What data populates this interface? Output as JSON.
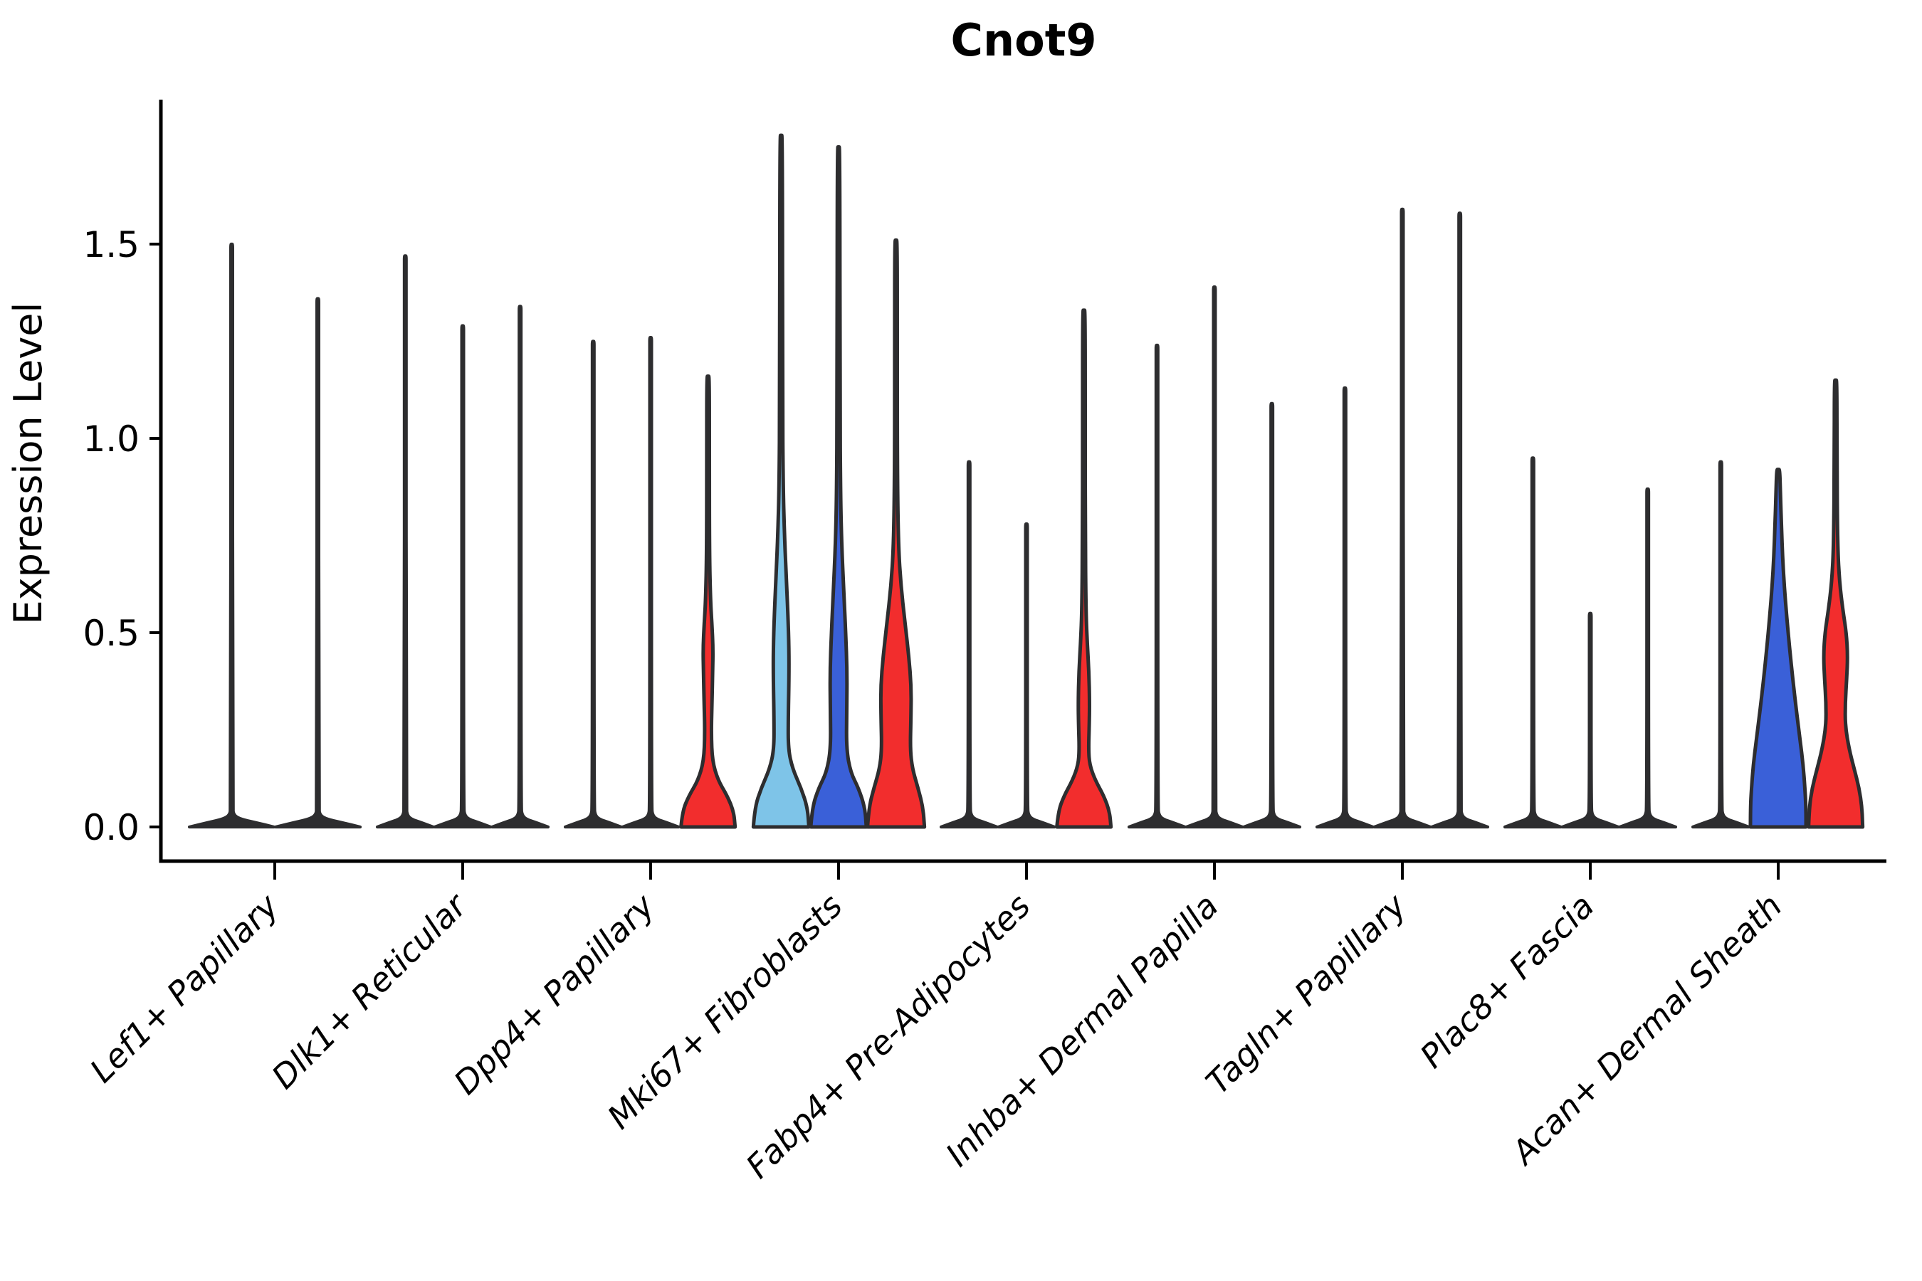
{
  "chart_data": {
    "type": "violin",
    "title": "Cnot9",
    "ylabel": "Expression Level",
    "yticks": [
      0.0,
      0.5,
      1.0,
      1.5
    ],
    "ytick_labels": [
      "0.0",
      "0.5",
      "1.0",
      "1.5"
    ],
    "ylim": [
      -0.09,
      1.87
    ],
    "grid": false,
    "legend": null,
    "palette": {
      "light_blue": "#7EC4E8",
      "blue": "#3A60D8",
      "red": "#F22D2D",
      "outline": "#2D2D2F",
      "axis": "#000000"
    },
    "groups": [
      {
        "label": "Lef1+ Papillary",
        "violins": [
          {
            "shape": "spike",
            "max": 1.5
          },
          {
            "shape": "spike",
            "max": 1.36
          }
        ]
      },
      {
        "label": "Dlk1+ Reticular",
        "violins": [
          {
            "shape": "spike",
            "max": 1.47
          },
          {
            "shape": "spike",
            "max": 1.29
          },
          {
            "shape": "spike",
            "max": 1.34
          }
        ]
      },
      {
        "label": "Dpp4+ Papillary",
        "violins": [
          {
            "shape": "spike",
            "max": 1.25
          },
          {
            "shape": "spike",
            "max": 1.26
          },
          {
            "shape": "violin",
            "color_key": "red",
            "max": 1.16,
            "profile": [
              [
                0,
                38
              ],
              [
                0.04,
                36
              ],
              [
                0.08,
                27
              ],
              [
                0.12,
                14
              ],
              [
                0.17,
                6
              ],
              [
                0.24,
                4.5
              ],
              [
                0.32,
                5.5
              ],
              [
                0.4,
                6.5
              ],
              [
                0.46,
                7
              ],
              [
                0.52,
                5.5
              ],
              [
                0.58,
                3.5
              ],
              [
                0.7,
                2
              ],
              [
                0.95,
                1.8
              ],
              [
                1.16,
                1.8
              ]
            ]
          }
        ]
      },
      {
        "label": "Mki67+ Fibroblasts",
        "violins": [
          {
            "shape": "violin",
            "color_key": "light_blue",
            "max": 1.78,
            "profile": [
              [
                0,
                39
              ],
              [
                0.05,
                37
              ],
              [
                0.1,
                28
              ],
              [
                0.15,
                16
              ],
              [
                0.2,
                10
              ],
              [
                0.28,
                10
              ],
              [
                0.38,
                11
              ],
              [
                0.46,
                11
              ],
              [
                0.55,
                9.5
              ],
              [
                0.65,
                7
              ],
              [
                0.76,
                4.5
              ],
              [
                0.88,
                2.8
              ],
              [
                1.1,
                2
              ],
              [
                1.78,
                1.8
              ]
            ]
          },
          {
            "shape": "violin",
            "color_key": "blue",
            "max": 1.75,
            "profile": [
              [
                0,
                39
              ],
              [
                0.05,
                37
              ],
              [
                0.1,
                28
              ],
              [
                0.14,
                17
              ],
              [
                0.2,
                11
              ],
              [
                0.3,
                11.5
              ],
              [
                0.4,
                12
              ],
              [
                0.5,
                10
              ],
              [
                0.6,
                7.5
              ],
              [
                0.72,
                4.5
              ],
              [
                0.85,
                2.8
              ],
              [
                1.1,
                2
              ],
              [
                1.75,
                1.8
              ]
            ]
          },
          {
            "shape": "violin",
            "color_key": "red",
            "max": 1.51,
            "profile": [
              [
                0,
                40
              ],
              [
                0.05,
                38
              ],
              [
                0.1,
                31
              ],
              [
                0.15,
                23
              ],
              [
                0.2,
                20
              ],
              [
                0.28,
                21
              ],
              [
                0.36,
                21.5
              ],
              [
                0.44,
                18
              ],
              [
                0.52,
                13
              ],
              [
                0.62,
                7
              ],
              [
                0.72,
                3.5
              ],
              [
                0.9,
                2
              ],
              [
                1.2,
                1.8
              ],
              [
                1.51,
                1.8
              ]
            ]
          }
        ]
      },
      {
        "label": "Fabp4+ Pre-Adipocytes",
        "violins": [
          {
            "shape": "spike",
            "max": 0.94
          },
          {
            "shape": "spike",
            "max": 0.78
          },
          {
            "shape": "violin",
            "color_key": "red",
            "max": 1.33,
            "profile": [
              [
                0,
                38
              ],
              [
                0.04,
                36
              ],
              [
                0.08,
                28
              ],
              [
                0.12,
                16
              ],
              [
                0.16,
                8
              ],
              [
                0.2,
                6.5
              ],
              [
                0.26,
                7.5
              ],
              [
                0.32,
                8
              ],
              [
                0.4,
                7
              ],
              [
                0.48,
                4.5
              ],
              [
                0.56,
                2.8
              ],
              [
                0.75,
                2
              ],
              [
                1.0,
                1.8
              ],
              [
                1.33,
                1.8
              ]
            ]
          }
        ]
      },
      {
        "label": "Inhba+ Dermal Papilla",
        "violins": [
          {
            "shape": "spike",
            "max": 1.24
          },
          {
            "shape": "spike",
            "max": 1.39
          },
          {
            "shape": "spike",
            "max": 1.09
          }
        ]
      },
      {
        "label": "Tagln+ Papillary",
        "violins": [
          {
            "shape": "spike",
            "max": 1.13
          },
          {
            "shape": "spike",
            "max": 1.59
          },
          {
            "shape": "spike",
            "max": 1.58
          }
        ]
      },
      {
        "label": "Plac8+ Fascia",
        "violins": [
          {
            "shape": "spike",
            "max": 0.95
          },
          {
            "shape": "spike",
            "max": 0.55
          },
          {
            "shape": "spike",
            "max": 0.87
          }
        ]
      },
      {
        "label": "Acan+ Dermal Sheath",
        "violins": [
          {
            "shape": "spike",
            "max": 0.94
          },
          {
            "shape": "violin",
            "color_key": "blue",
            "max": 0.92,
            "profile": [
              [
                0,
                39
              ],
              [
                0.05,
                39
              ],
              [
                0.1,
                37.5
              ],
              [
                0.16,
                35
              ],
              [
                0.22,
                31
              ],
              [
                0.3,
                25.5
              ],
              [
                0.38,
                20.5
              ],
              [
                0.46,
                16
              ],
              [
                0.54,
                12
              ],
              [
                0.62,
                8.5
              ],
              [
                0.7,
                6
              ],
              [
                0.78,
                4.5
              ],
              [
                0.85,
                3.2
              ],
              [
                0.92,
                2.2
              ]
            ]
          },
          {
            "shape": "violin",
            "color_key": "red",
            "max": 1.15,
            "profile": [
              [
                0,
                38
              ],
              [
                0.05,
                37
              ],
              [
                0.1,
                33
              ],
              [
                0.15,
                26
              ],
              [
                0.2,
                19
              ],
              [
                0.26,
                13.5
              ],
              [
                0.32,
                13.5
              ],
              [
                0.38,
                15.5
              ],
              [
                0.44,
                17
              ],
              [
                0.5,
                15
              ],
              [
                0.56,
                10
              ],
              [
                0.63,
                5.5
              ],
              [
                0.72,
                2.8
              ],
              [
                0.95,
                1.8
              ],
              [
                1.15,
                1.8
              ]
            ]
          }
        ]
      }
    ]
  }
}
